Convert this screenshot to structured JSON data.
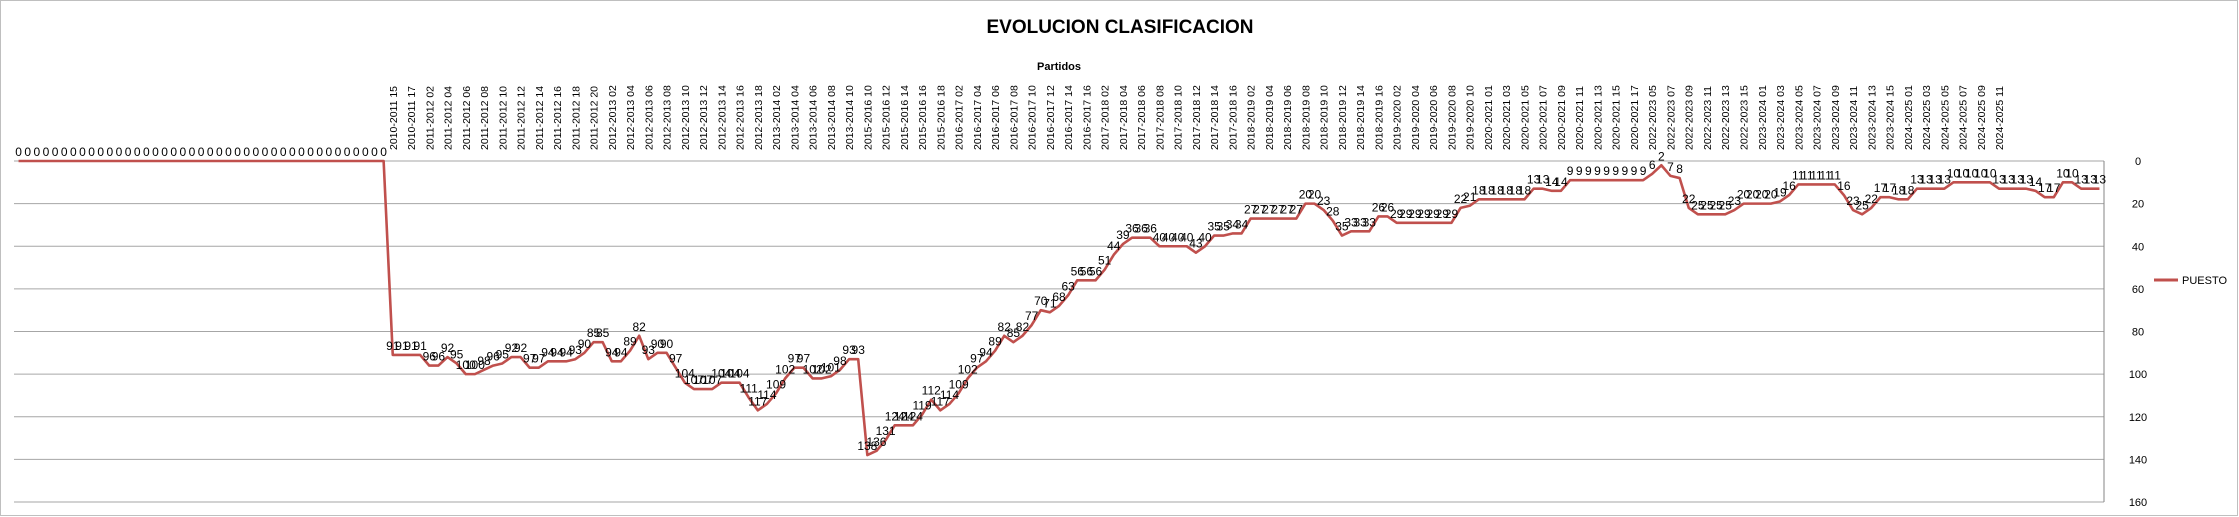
{
  "chart_data": {
    "type": "line",
    "title": "EVOLUCION CLASIFICACION",
    "xlabel": "Partidos",
    "ylabel": "",
    "ylim": [
      0,
      160
    ],
    "y_reversed": true,
    "y_ticks": [
      0,
      20,
      40,
      60,
      80,
      100,
      120,
      140,
      160
    ],
    "x_axis_position": "top",
    "y_axis_position": "right",
    "grid": true,
    "legend_position": "right",
    "colors": {
      "series": "#c0504d",
      "grid": "#a6a6a6",
      "text": "#000000"
    },
    "x_tick_labels": [
      "2010-2011 15",
      "2010-2011 17",
      "2011-2012 02",
      "2011-2012 04",
      "2011-2012 06",
      "2011-2012 08",
      "2011-2012 10",
      "2011-2012 12",
      "2011-2012 14",
      "2011-2012 16",
      "2011-2012 18",
      "2011-2012 20",
      "2012-2013 02",
      "2012-2013 04",
      "2012-2013 06",
      "2012-2013 08",
      "2012-2013 10",
      "2012-2013 12",
      "2012-2013 14",
      "2012-2013 16",
      "2012-2013 18",
      "2013-2014 02",
      "2013-2014 04",
      "2013-2014 06",
      "2013-2014 08",
      "2013-2014 10",
      "2015-2016 10",
      "2015-2016 12",
      "2015-2016 14",
      "2015-2016 16",
      "2015-2016 18",
      "2016-2017 02",
      "2016-2017 04",
      "2016-2017 06",
      "2016-2017 08",
      "2016-2017 10",
      "2016-2017 12",
      "2016-2017 14",
      "2016-2017 16",
      "2017-2018 02",
      "2017-2018 04",
      "2017-2018 06",
      "2017-2018 08",
      "2017-2018 10",
      "2017-2018 12",
      "2017-2018 14",
      "2017-2018 16",
      "2018-2019 02",
      "2018-2019 04",
      "2018-2019 06",
      "2018-2019 08",
      "2018-2019 10",
      "2018-2019 12",
      "2018-2019 14",
      "2018-2019 16",
      "2019-2020 02",
      "2019-2020 04",
      "2019-2020 06",
      "2019-2020 08",
      "2019-2020 10",
      "2020-2021 01",
      "2020-2021 03",
      "2020-2021 05",
      "2020-2021 07",
      "2020-2021 09",
      "2020-2021 11",
      "2020-2021 13",
      "2020-2021 15",
      "2020-2021 17",
      "2022-2023 05",
      "2022-2023 07",
      "2022-2023 09",
      "2022-2023 11",
      "2022-2023 13",
      "2022-2023 15",
      "2023-2024 01",
      "2023-2024 03",
      "2023-2024 05",
      "2023-2024 07",
      "2023-2024 09",
      "2023-2024 11",
      "2023-2024 13",
      "2023-2024 15",
      "2024-2025 01",
      "2024-2025 03",
      "2024-2025 05",
      "2024-2025 07",
      "2024-2025 09",
      "2024-2025 11"
    ],
    "series": [
      {
        "name": "PUESTO",
        "values": [
          0,
          0,
          0,
          0,
          0,
          0,
          0,
          0,
          0,
          0,
          0,
          0,
          0,
          0,
          0,
          0,
          0,
          0,
          0,
          0,
          0,
          0,
          0,
          0,
          0,
          0,
          0,
          0,
          0,
          0,
          0,
          0,
          0,
          0,
          0,
          0,
          0,
          0,
          0,
          0,
          0,
          91,
          91,
          91,
          91,
          96,
          96,
          92,
          95,
          100,
          100,
          98,
          96,
          95,
          92,
          92,
          97,
          97,
          94,
          94,
          94,
          93,
          90,
          85,
          85,
          94,
          94,
          89,
          82,
          93,
          90,
          90,
          97,
          104,
          107,
          107,
          107,
          104,
          104,
          104,
          111,
          117,
          114,
          109,
          102,
          97,
          97,
          102,
          102,
          101,
          98,
          93,
          93,
          138,
          136,
          131,
          124,
          124,
          124,
          119,
          112,
          117,
          114,
          109,
          102,
          97,
          94,
          89,
          82,
          85,
          82,
          77,
          70,
          71,
          68,
          63,
          56,
          56,
          56,
          51,
          44,
          39,
          36,
          36,
          36,
          40,
          40,
          40,
          40,
          43,
          40,
          35,
          35,
          34,
          34,
          27,
          27,
          27,
          27,
          27,
          27,
          20,
          20,
          23,
          28,
          35,
          33,
          33,
          33,
          26,
          26,
          29,
          29,
          29,
          29,
          29,
          29,
          29,
          22,
          21,
          18,
          18,
          18,
          18,
          18,
          18,
          13,
          13,
          14,
          14,
          9,
          9,
          9,
          9,
          9,
          9,
          9,
          9,
          9,
          6,
          2,
          7,
          8,
          22,
          25,
          25,
          25,
          25,
          23,
          20,
          20,
          20,
          20,
          19,
          16,
          11,
          11,
          11,
          11,
          11,
          16,
          23,
          25,
          22,
          17,
          17,
          18,
          18,
          13,
          13,
          13,
          13,
          10,
          10,
          10,
          10,
          10,
          13,
          13,
          13,
          13,
          14,
          17,
          17,
          10,
          10,
          13,
          13,
          13
        ]
      }
    ]
  }
}
